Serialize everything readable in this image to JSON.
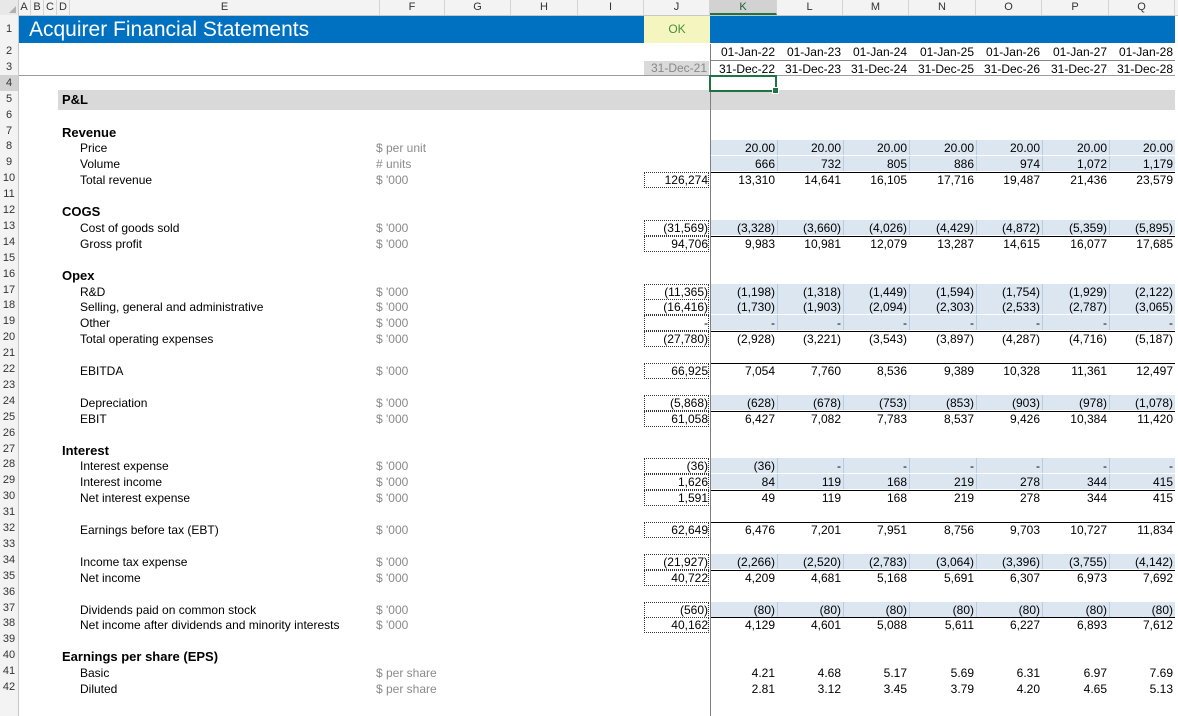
{
  "title": "Acquirer Financial Statements",
  "check": "OK",
  "columns": [
    "A",
    "B",
    "C",
    "D",
    "E",
    "F",
    "G",
    "H",
    "I",
    "J",
    "K",
    "L",
    "M",
    "N",
    "O",
    "P",
    "Q"
  ],
  "row_numbers": [
    "1",
    "2",
    "3",
    "4",
    "5",
    "6",
    "7",
    "8",
    "9",
    "10",
    "11",
    "12",
    "13",
    "14",
    "15",
    "16",
    "17",
    "18",
    "19",
    "20",
    "21",
    "22",
    "23",
    "24",
    "25",
    "26",
    "27",
    "28",
    "29",
    "30",
    "31",
    "32",
    "33",
    "34",
    "35",
    "36",
    "37",
    "38",
    "39",
    "40",
    "41",
    "42"
  ],
  "dates": {
    "j_end": "31-Dec-21",
    "start": [
      "01-Jan-22",
      "01-Jan-23",
      "01-Jan-24",
      "01-Jan-25",
      "01-Jan-26",
      "01-Jan-27",
      "01-Jan-28"
    ],
    "end": [
      "31-Dec-22",
      "31-Dec-23",
      "31-Dec-24",
      "31-Dec-25",
      "31-Dec-26",
      "31-Dec-27",
      "31-Dec-28"
    ]
  },
  "section": "P&L",
  "headings": {
    "r7": "Revenue",
    "r12": "COGS",
    "r16": "Opex",
    "r27": "Interest",
    "r40": "Earnings per share (EPS)"
  },
  "rows": [
    {
      "r": 8,
      "label": "Price",
      "unit": "$ per unit",
      "j": "",
      "vals": [
        "20.00",
        "20.00",
        "20.00",
        "20.00",
        "20.00",
        "20.00",
        "20.00"
      ]
    },
    {
      "r": 9,
      "label": "Volume",
      "unit": "# units",
      "j": "",
      "vals": [
        "666",
        "732",
        "805",
        "886",
        "974",
        "1,072",
        "1,179"
      ]
    },
    {
      "r": 10,
      "label": "Total revenue",
      "unit": "$ '000",
      "j": "126,274",
      "vals": [
        "13,310",
        "14,641",
        "16,105",
        "17,716",
        "19,487",
        "21,436",
        "23,579"
      ]
    },
    {
      "r": 13,
      "label": "Cost of goods sold",
      "unit": "$ '000",
      "j": "(31,569)",
      "vals": [
        "(3,328)",
        "(3,660)",
        "(4,026)",
        "(4,429)",
        "(4,872)",
        "(5,359)",
        "(5,895)"
      ]
    },
    {
      "r": 14,
      "label": "Gross profit",
      "unit": "$ '000",
      "j": "94,706",
      "vals": [
        "9,983",
        "10,981",
        "12,079",
        "13,287",
        "14,615",
        "16,077",
        "17,685"
      ]
    },
    {
      "r": 17,
      "label": "R&D",
      "unit": "$ '000",
      "j": "(11,365)",
      "vals": [
        "(1,198)",
        "(1,318)",
        "(1,449)",
        "(1,594)",
        "(1,754)",
        "(1,929)",
        "(2,122)"
      ]
    },
    {
      "r": 18,
      "label": "Selling, general and administrative",
      "unit": "$ '000",
      "j": "(16,416)",
      "vals": [
        "(1,730)",
        "(1,903)",
        "(2,094)",
        "(2,303)",
        "(2,533)",
        "(2,787)",
        "(3,065)"
      ]
    },
    {
      "r": 19,
      "label": "Other",
      "unit": "$ '000",
      "j": "-",
      "vals": [
        "-",
        "-",
        "-",
        "-",
        "-",
        "-",
        "-"
      ]
    },
    {
      "r": 20,
      "label": "Total operating expenses",
      "unit": "$ '000",
      "j": "(27,780)",
      "vals": [
        "(2,928)",
        "(3,221)",
        "(3,543)",
        "(3,897)",
        "(4,287)",
        "(4,716)",
        "(5,187)"
      ]
    },
    {
      "r": 22,
      "label": "EBITDA",
      "unit": "$ '000",
      "j": "66,925",
      "vals": [
        "7,054",
        "7,760",
        "8,536",
        "9,389",
        "10,328",
        "11,361",
        "12,497"
      ]
    },
    {
      "r": 24,
      "label": "Depreciation",
      "unit": "$ '000",
      "j": "(5,868)",
      "vals": [
        "(628)",
        "(678)",
        "(753)",
        "(853)",
        "(903)",
        "(978)",
        "(1,078)"
      ]
    },
    {
      "r": 25,
      "label": "EBIT",
      "unit": "$ '000",
      "j": "61,058",
      "vals": [
        "6,427",
        "7,082",
        "7,783",
        "8,537",
        "9,426",
        "10,384",
        "11,420"
      ]
    },
    {
      "r": 28,
      "label": "Interest expense",
      "unit": "$ '000",
      "j": "(36)",
      "vals": [
        "(36)",
        "-",
        "-",
        "-",
        "-",
        "-",
        "-"
      ]
    },
    {
      "r": 29,
      "label": "Interest income",
      "unit": "$ '000",
      "j": "1,626",
      "vals": [
        "84",
        "119",
        "168",
        "219",
        "278",
        "344",
        "415"
      ]
    },
    {
      "r": 30,
      "label": "Net interest expense",
      "unit": "$ '000",
      "j": "1,591",
      "vals": [
        "49",
        "119",
        "168",
        "219",
        "278",
        "344",
        "415"
      ]
    },
    {
      "r": 32,
      "label": "Earnings before tax (EBT)",
      "unit": "$ '000",
      "j": "62,649",
      "vals": [
        "6,476",
        "7,201",
        "7,951",
        "8,756",
        "9,703",
        "10,727",
        "11,834"
      ]
    },
    {
      "r": 34,
      "label": "Income tax expense",
      "unit": "$ '000",
      "j": "(21,927)",
      "vals": [
        "(2,266)",
        "(2,520)",
        "(2,783)",
        "(3,064)",
        "(3,396)",
        "(3,755)",
        "(4,142)"
      ]
    },
    {
      "r": 35,
      "label": "Net income",
      "unit": "$ '000",
      "j": "40,722",
      "vals": [
        "4,209",
        "4,681",
        "5,168",
        "5,691",
        "6,307",
        "6,973",
        "7,692"
      ]
    },
    {
      "r": 37,
      "label": "Dividends paid on common stock",
      "unit": "$ '000",
      "j": "(560)",
      "vals": [
        "(80)",
        "(80)",
        "(80)",
        "(80)",
        "(80)",
        "(80)",
        "(80)"
      ]
    },
    {
      "r": 38,
      "label": "Net income after dividends and minority interests",
      "unit": "$ '000",
      "j": "40,162",
      "vals": [
        "4,129",
        "4,601",
        "5,088",
        "5,611",
        "6,227",
        "6,893",
        "7,612"
      ]
    },
    {
      "r": 41,
      "label": "Basic",
      "unit": "$ per share",
      "j": "",
      "vals": [
        "4.21",
        "4.68",
        "5.17",
        "5.69",
        "6.31",
        "6.97",
        "7.69"
      ]
    },
    {
      "r": 42,
      "label": "Diluted",
      "unit": "$ per share",
      "j": "",
      "vals": [
        "2.81",
        "3.12",
        "3.45",
        "3.79",
        "4.20",
        "4.65",
        "5.13"
      ]
    }
  ],
  "colors": {
    "title_bg": "#0070c0",
    "input_blue": "#dce6f1",
    "section_grey": "#d9d9d9",
    "check_bg": "#f5f5c0",
    "check_text": "#4a8f3a",
    "selection": "#217346"
  }
}
